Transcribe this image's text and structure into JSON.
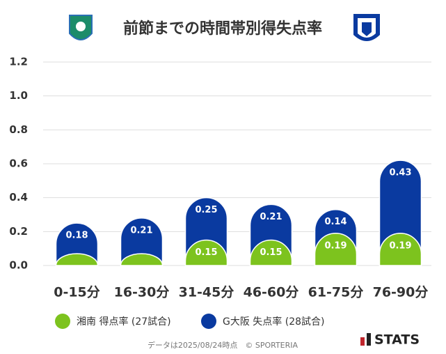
{
  "chart_data": {
    "type": "stacked_bar",
    "title": "前節までの時間帯別得失点率",
    "categories": [
      "0-15分",
      "16-30分",
      "31-45分",
      "46-60分",
      "61-75分",
      "76-90分"
    ],
    "series": [
      {
        "name": "湘南 得点率 (27試合)",
        "color": "#7dc31e",
        "values": [
          0.07,
          0.07,
          0.15,
          0.15,
          0.19,
          0.19
        ]
      },
      {
        "name": "G大阪 失点率 (28試合)",
        "color": "#0a3aa0",
        "values": [
          0.18,
          0.21,
          0.25,
          0.21,
          0.14,
          0.43
        ]
      }
    ],
    "ylim": [
      0,
      1.2
    ],
    "yticks": [
      {
        "value": 0,
        "label": "0.0"
      },
      0.2,
      0.4,
      0.6,
      0.8,
      {
        "value": 1,
        "label": "1.0"
      },
      1.2
    ],
    "grid": true,
    "legend": "bottom",
    "footer": "データは2025/08/24時点　© SPORTERIA",
    "brand": "STATS"
  }
}
